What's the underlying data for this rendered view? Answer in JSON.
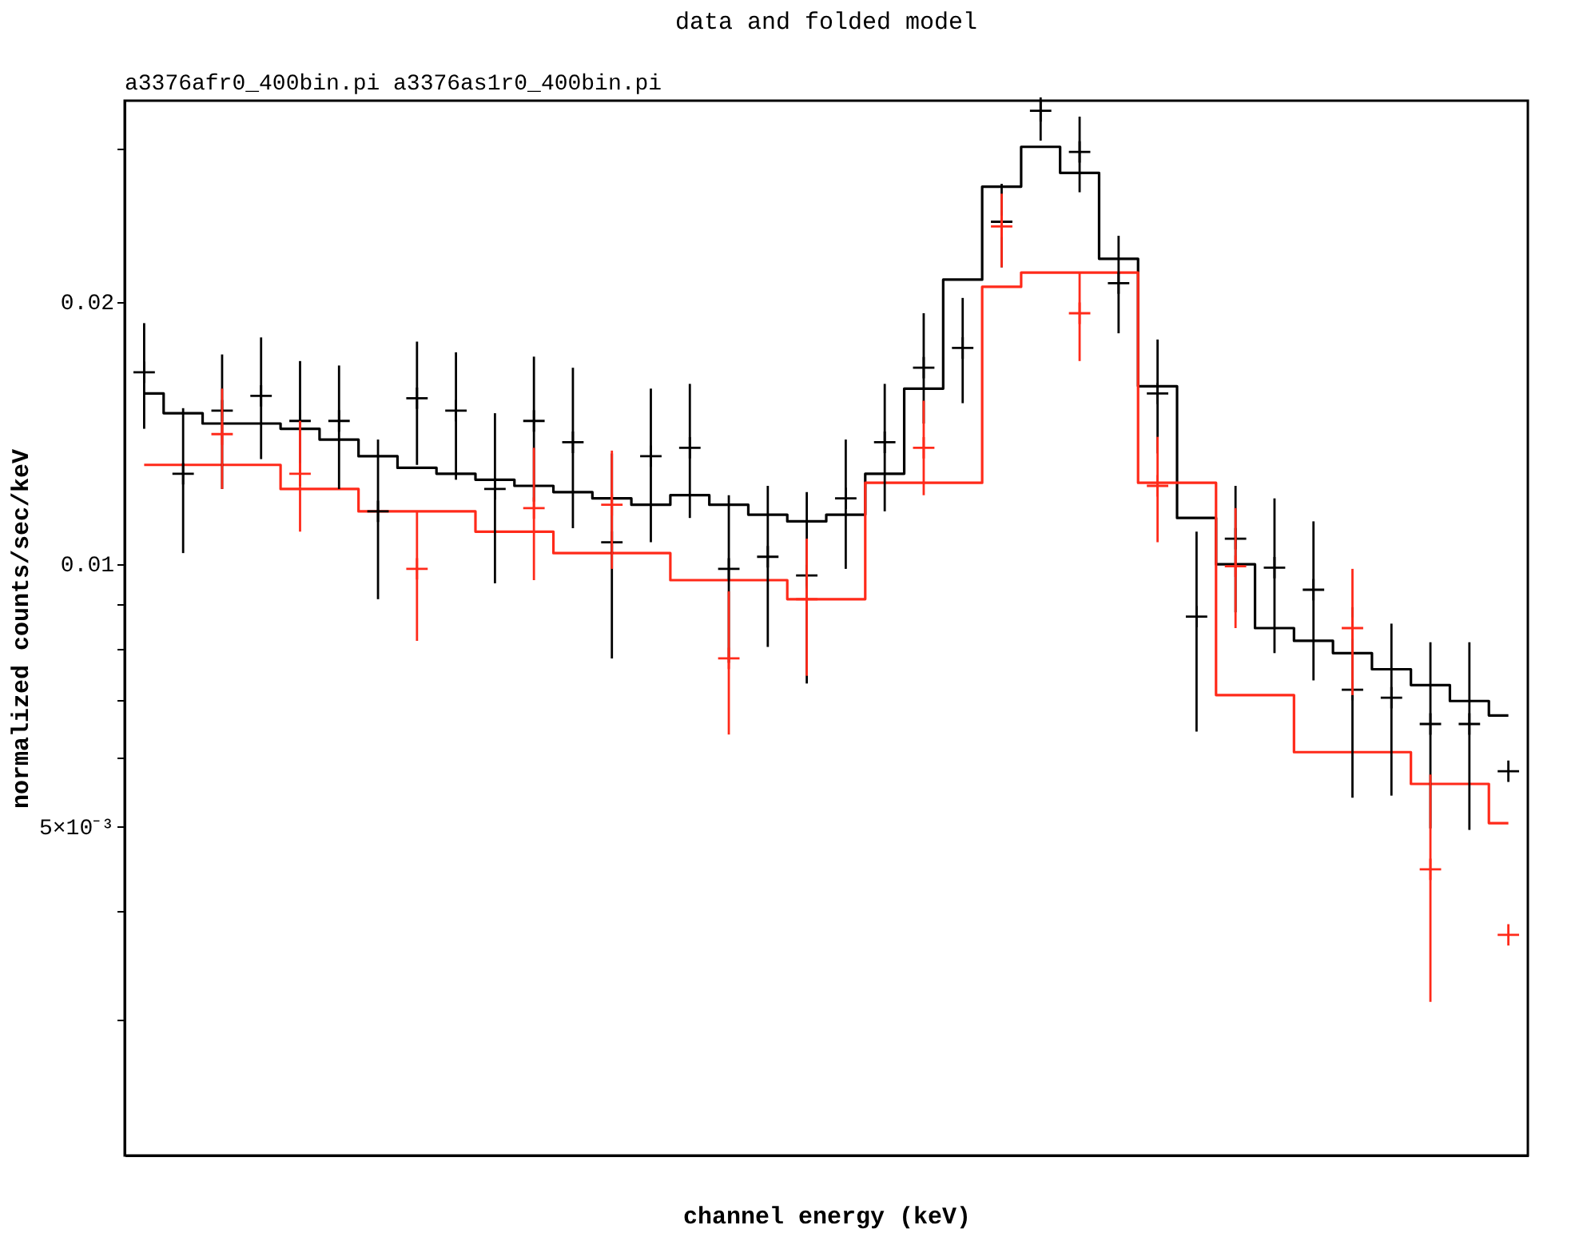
{
  "chart_data": {
    "type": "scatter",
    "title": "data and folded model",
    "subtitle": "a3376afr0_400bin.pi a3376as1r0_400bin.pi",
    "xlabel": "channel energy (keV)",
    "ylabel": "normalized counts/sec/keV",
    "categories": [
      null,
      null,
      null,
      null,
      null,
      null,
      null,
      null,
      null,
      null,
      null,
      null,
      null,
      null,
      null,
      null,
      null,
      null,
      null,
      null,
      null,
      null,
      null,
      null,
      null,
      null,
      null,
      null,
      null,
      null,
      null,
      null,
      null,
      null,
      null,
      null
    ],
    "log": "y",
    "ylim": [
      0.0021,
      0.034
    ],
    "yticks": [
      {
        "value": 0.003,
        "label": null
      },
      {
        "value": 0.004,
        "label": null
      },
      {
        "value": 0.005,
        "label": "5×10⁻³"
      },
      {
        "value": 0.006,
        "label": null
      },
      {
        "value": 0.007,
        "label": null
      },
      {
        "value": 0.008,
        "label": null
      },
      {
        "value": 0.009,
        "label": null
      },
      0.01,
      0.02,
      {
        "value": 0.03,
        "label": null
      }
    ],
    "tick_labels": "y",
    "series": [
      {
        "type": "step",
        "color": "#000000",
        "values": [
          0.0157,
          0.0149,
          0.0145,
          0.0145,
          0.0143,
          0.0139,
          0.0133,
          0.0129,
          0.0127,
          0.0125,
          0.0123,
          0.0121,
          0.0119,
          0.0117,
          0.012,
          0.0117,
          0.0114,
          0.0112,
          0.0114,
          0.0127,
          0.0159,
          0.0212,
          0.0271,
          0.0301,
          0.0281,
          0.0224,
          0.016,
          0.0113,
          0.01,
          0.00845,
          0.00817,
          0.00791,
          0.00758,
          0.00727,
          0.00697,
          0.00671
        ]
      },
      {
        "type": "step",
        "color": "#ff2a1a",
        "values": [
          0.013,
          0.013,
          0.013,
          0.013,
          0.0122,
          0.0122,
          0.0115,
          0.0115,
          0.0115,
          0.0109,
          0.0109,
          0.0103,
          0.0103,
          0.0103,
          0.00959,
          0.00959,
          0.00959,
          0.00912,
          0.00912,
          0.0124,
          0.0124,
          0.0124,
          0.0208,
          0.0216,
          0.0216,
          0.0216,
          0.0124,
          0.0124,
          0.00708,
          0.00708,
          0.00609,
          0.00609,
          0.00609,
          0.0056,
          0.0056,
          0.00505
        ]
      },
      {
        "color": "#000000",
        "values": [
          0.0166,
          0.0127,
          0.015,
          0.0156,
          0.0146,
          0.0146,
          0.0115,
          0.0155,
          0.015,
          0.0122,
          0.0146,
          0.0138,
          0.0106,
          0.0133,
          0.0136,
          0.00988,
          0.0102,
          0.00971,
          0.0119,
          0.0138,
          0.0168,
          0.0177,
          0.0247,
          0.0331,
          0.0297,
          0.021,
          0.0157,
          0.00871,
          0.0107,
          0.00991,
          0.00935,
          0.00718,
          0.00703,
          0.00656,
          0.00656,
          0.00579
        ],
        "errors": [
          [
            0.0143,
            0.0189
          ],
          [
            0.0103,
            0.0151
          ],
          [
            0.0122,
            0.0174
          ],
          [
            0.0132,
            0.0182
          ],
          [
            0.0123,
            0.0171
          ],
          [
            0.0122,
            0.0169
          ],
          [
            0.00912,
            0.0139
          ],
          [
            0.013,
            0.018
          ],
          [
            0.0125,
            0.0175
          ],
          [
            0.00951,
            0.0149
          ],
          [
            0.0118,
            0.0173
          ],
          [
            0.011,
            0.0168
          ],
          [
            0.0078,
            0.0134
          ],
          [
            0.0106,
            0.0159
          ],
          [
            0.0113,
            0.0161
          ],
          [
            0.00771,
            0.012
          ],
          [
            0.00804,
            0.0123
          ],
          [
            0.0073,
            0.0121
          ],
          [
            0.00988,
            0.0139
          ],
          [
            0.0115,
            0.0161
          ],
          [
            0.0145,
            0.0194
          ],
          [
            0.0153,
            0.0202
          ],
          [
            0.0219,
            0.0273
          ],
          [
            0.0306,
            0.0343
          ],
          [
            0.0267,
            0.0326
          ],
          [
            0.0184,
            0.0238
          ],
          [
            0.0134,
            0.0181
          ],
          [
            0.00643,
            0.0109
          ],
          [
            0.00881,
            0.0123
          ],
          [
            0.00791,
            0.0119
          ],
          [
            0.00736,
            0.0112
          ],
          [
            0.0054,
            0.00893
          ],
          [
            0.00543,
            0.00855
          ],
          [
            0.00498,
            0.00814
          ],
          [
            0.00496,
            0.00814
          ],
          null
        ]
      },
      {
        "color": "#ff2a1a",
        "values": [
          null,
          null,
          0.0141,
          null,
          0.0127,
          null,
          null,
          0.00988,
          null,
          null,
          0.0116,
          null,
          0.0117,
          null,
          null,
          0.0078,
          null,
          0.00912,
          null,
          null,
          0.0136,
          null,
          0.0244,
          null,
          0.0194,
          null,
          0.0123,
          null,
          0.00995,
          null,
          null,
          0.00845,
          null,
          0.00447,
          null,
          0.00376
        ],
        "errors": [
          null,
          null,
          [
            0.0122,
            0.0159
          ],
          null,
          [
            0.0109,
            0.0146
          ],
          null,
          null,
          [
            0.00817,
            0.0115
          ],
          null,
          null,
          [
            0.00959,
            0.0136
          ],
          null,
          [
            0.00988,
            0.0135
          ],
          null,
          null,
          [
            0.00638,
            0.00931
          ],
          null,
          [
            0.00745,
            0.0107
          ],
          null,
          null,
          [
            0.012,
            0.0154
          ],
          null,
          [
            0.0219,
            0.0266
          ],
          null,
          [
            0.0171,
            0.0216
          ],
          null,
          [
            0.0106,
            0.014
          ],
          null,
          [
            0.00845,
            0.0116
          ],
          null,
          null,
          [
            0.00708,
            0.00988
          ],
          null,
          [
            0.00315,
            0.00574
          ],
          null,
          null
        ]
      }
    ]
  }
}
